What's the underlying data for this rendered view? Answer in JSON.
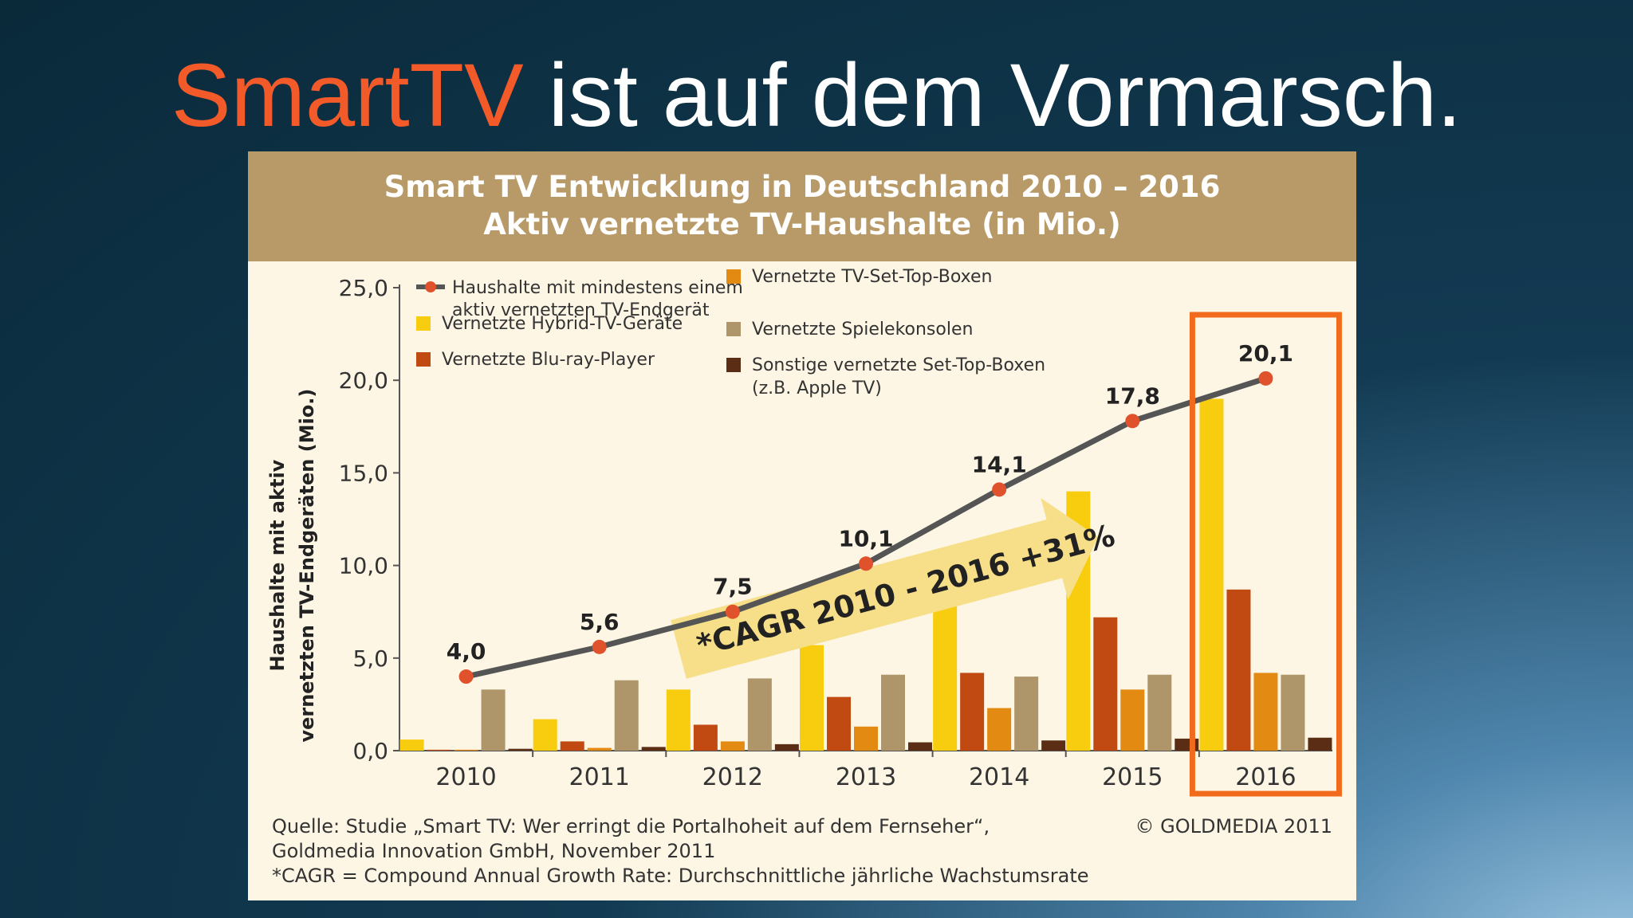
{
  "slide": {
    "title_accent": "SmartTV",
    "title_rest": " ist auf dem Vormarsch.",
    "colors": {
      "accent": "#f35a2a",
      "background": "#0a2a3a"
    }
  },
  "chart_data": {
    "type": "bar",
    "title": "Smart TV Entwicklung in Deutschland 2010 – 2016",
    "subtitle": "Aktiv vernetzte TV-Haushalte (in Mio.)",
    "ylabel_line1": "Haushalte mit aktiv",
    "ylabel_line2": "vernetzten TV-Endgeräten (Mio.)",
    "ylim": [
      0,
      25
    ],
    "yticks": [
      0,
      5,
      10,
      15,
      20,
      25
    ],
    "ytick_labels": [
      "0,0",
      "5,0",
      "10,0",
      "15,0",
      "20,0",
      "25,0"
    ],
    "categories": [
      "2010",
      "2011",
      "2012",
      "2013",
      "2014",
      "2015",
      "2016"
    ],
    "series": [
      {
        "name": "Vernetzte Hybrid-TV-Geräte",
        "color": "#f8cd10",
        "values": [
          0.6,
          1.7,
          3.3,
          5.7,
          9.5,
          14.0,
          19.0
        ]
      },
      {
        "name": "Vernetzte Blu-ray-Player",
        "color": "#c04a12",
        "values": [
          0.05,
          0.5,
          1.4,
          2.9,
          4.2,
          7.2,
          8.7
        ]
      },
      {
        "name": "Vernetzte TV-Set-Top-Boxen",
        "color": "#e38a12",
        "values": [
          0.05,
          0.15,
          0.5,
          1.3,
          2.3,
          3.3,
          4.2
        ]
      },
      {
        "name": "Vernetzte Spielekonsolen",
        "color": "#ae966a",
        "values": [
          3.3,
          3.8,
          3.9,
          4.1,
          4.0,
          4.1,
          4.1
        ]
      },
      {
        "name": "Sonstige vernetzte Set-Top-Boxen",
        "name_line2": "(z.B. Apple TV)",
        "color": "#5a2d14",
        "values": [
          0.1,
          0.2,
          0.35,
          0.45,
          0.55,
          0.65,
          0.7
        ]
      }
    ],
    "line": {
      "name": "Haushalte mit mindestens einem",
      "name_line2": "aktiv vernetzten TV-Endgerät",
      "color": "#555555",
      "marker_color": "#e0522c",
      "values": [
        4.0,
        5.6,
        7.5,
        10.1,
        14.1,
        17.8,
        20.1
      ],
      "labels": [
        "4,0",
        "5,6",
        "7,5",
        "10,1",
        "14,1",
        "17,8",
        "20,1"
      ]
    },
    "annotation": "*CAGR 2010 - 2016 +31%",
    "highlight": {
      "category": "2016",
      "color": "#f26a1b"
    },
    "legend_position": "top",
    "grid": false
  },
  "footer": {
    "source_line1": "Quelle: Studie „Smart TV: Wer erringt die Portalhoheit auf dem Fernseher“,",
    "source_line2": "Goldmedia Innovation GmbH, November 2011",
    "cagr_note": "*CAGR = Compound Annual Growth Rate: Durchschnittliche jährliche Wachstumsrate",
    "copyright": "© GOLDMEDIA 2011"
  }
}
